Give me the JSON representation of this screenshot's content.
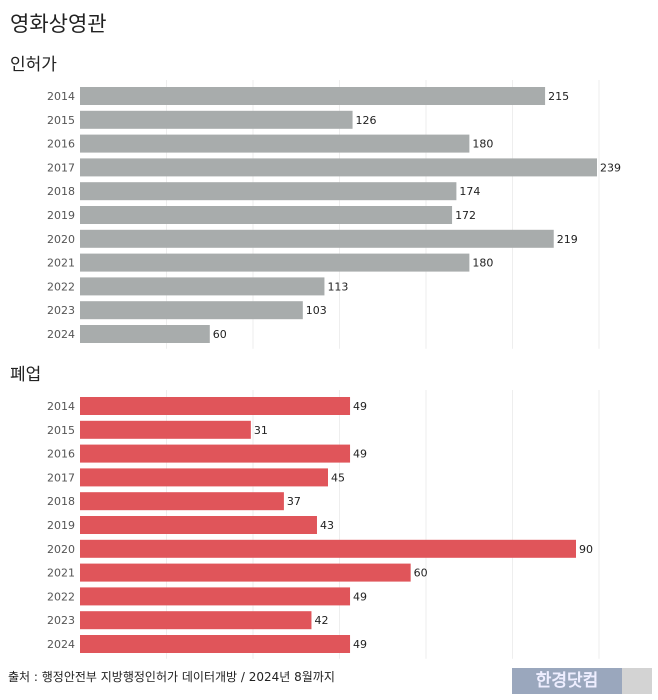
{
  "title": "영화상영관",
  "source": "출처 : 행정안전부 지방행정인허가 데이터개방 / 2024년 8월까지",
  "watermark": "한경닷컴",
  "colors": {
    "permit": "#a8acac",
    "closure": "#e0555a"
  },
  "chart_data": [
    {
      "type": "bar",
      "orientation": "horizontal",
      "title": "인허가",
      "categories": [
        "2014",
        "2015",
        "2016",
        "2017",
        "2018",
        "2019",
        "2020",
        "2021",
        "2022",
        "2023",
        "2024"
      ],
      "values": [
        215,
        126,
        180,
        239,
        174,
        172,
        219,
        180,
        113,
        103,
        60
      ],
      "grid": true
    },
    {
      "type": "bar",
      "orientation": "horizontal",
      "title": "폐업",
      "categories": [
        "2014",
        "2015",
        "2016",
        "2017",
        "2018",
        "2019",
        "2020",
        "2021",
        "2022",
        "2023",
        "2024"
      ],
      "values": [
        49,
        31,
        49,
        45,
        37,
        43,
        90,
        60,
        49,
        42,
        49
      ],
      "grid": true
    }
  ]
}
